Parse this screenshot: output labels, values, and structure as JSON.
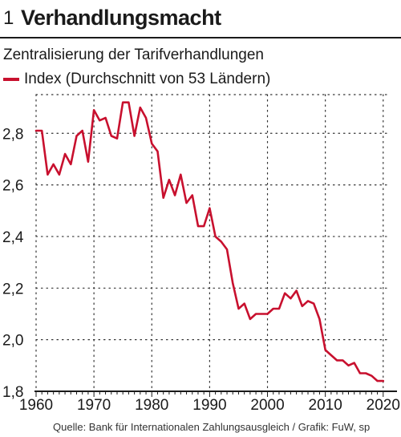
{
  "figure": {
    "number": "1",
    "title": "Verhandlungsmacht",
    "subtitle": "Zentralisierung der Tarifverhandlungen",
    "source": "Quelle: Bank für Internationalen Zahlungsausgleich / Grafik: FuW, sp"
  },
  "colors": {
    "series": "#c8102e",
    "grid": "#333333",
    "axis": "#1a1a1a"
  },
  "chart_data": {
    "type": "line",
    "title": "Verhandlungsmacht",
    "subtitle": "Zentralisierung der Tarifverhandlungen",
    "xlabel": "",
    "ylabel": "",
    "xlim": [
      1960,
      2021
    ],
    "ylim": [
      1.8,
      2.95
    ],
    "xticks": [
      1960,
      1970,
      1980,
      1990,
      2000,
      2010,
      2020
    ],
    "yticks": [
      1.8,
      2.0,
      2.2,
      2.4,
      2.6,
      2.8
    ],
    "ytick_labels": [
      "1,8",
      "2,0",
      "2,2",
      "2,4",
      "2,6",
      "2,8"
    ],
    "xtick_labels": [
      "1960",
      "1970",
      "1980",
      "1990",
      "2000",
      "2010",
      "2020"
    ],
    "grid": "dotted",
    "legend_position": "top-left",
    "series": [
      {
        "name": "Index (Durchschnitt von 53 Ländern)",
        "x": [
          1960,
          1961,
          1962,
          1963,
          1964,
          1965,
          1966,
          1967,
          1968,
          1969,
          1970,
          1971,
          1972,
          1973,
          1974,
          1975,
          1976,
          1977,
          1978,
          1979,
          1980,
          1981,
          1982,
          1983,
          1984,
          1985,
          1986,
          1987,
          1988,
          1989,
          1990,
          1991,
          1992,
          1993,
          1994,
          1995,
          1996,
          1997,
          1998,
          1999,
          2000,
          2001,
          2002,
          2003,
          2004,
          2005,
          2006,
          2007,
          2008,
          2009,
          2010,
          2011,
          2012,
          2013,
          2014,
          2015,
          2016,
          2017,
          2018,
          2019,
          2020
        ],
        "y": [
          2.81,
          2.81,
          2.64,
          2.68,
          2.64,
          2.72,
          2.68,
          2.79,
          2.81,
          2.69,
          2.89,
          2.85,
          2.86,
          2.79,
          2.78,
          2.92,
          2.92,
          2.79,
          2.9,
          2.86,
          2.76,
          2.73,
          2.55,
          2.62,
          2.56,
          2.64,
          2.53,
          2.56,
          2.44,
          2.44,
          2.51,
          2.4,
          2.38,
          2.35,
          2.22,
          2.12,
          2.14,
          2.08,
          2.1,
          2.1,
          2.1,
          2.12,
          2.12,
          2.18,
          2.16,
          2.19,
          2.13,
          2.15,
          2.14,
          2.08,
          1.96,
          1.94,
          1.92,
          1.92,
          1.9,
          1.91,
          1.87,
          1.87,
          1.86,
          1.84,
          1.84
        ]
      }
    ]
  }
}
